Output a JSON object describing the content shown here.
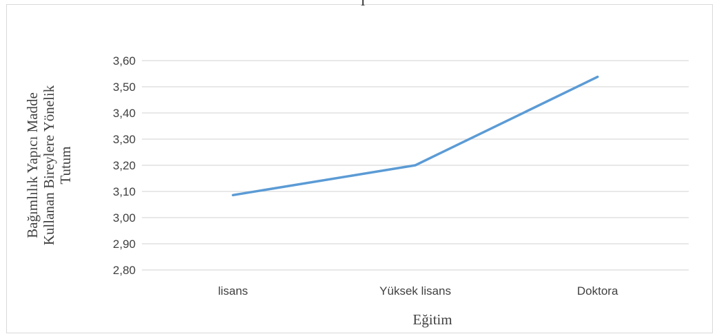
{
  "chart_data": {
    "type": "line",
    "title": "",
    "top_fragment": "İ",
    "categories": [
      "lisans",
      "Yüksek lisans",
      "Doktora"
    ],
    "series": [
      {
        "values": [
          3.086,
          3.2,
          3.538
        ],
        "color": "#5b9bd5"
      }
    ],
    "ylim": [
      2.8,
      3.6
    ],
    "yticks": [
      "3,60",
      "3,50",
      "3,40",
      "3,30",
      "3,20",
      "3,10",
      "3,00",
      "2,90",
      "2,80"
    ],
    "xlabel": "Eğitim",
    "ylabel_lines": [
      "Bağımlılık Yapıcı Madde",
      "Kullanan Bireylere Yönelik",
      "Tutum"
    ],
    "grid": true,
    "gridline_color": "#d9d9d9",
    "legend": "none"
  }
}
